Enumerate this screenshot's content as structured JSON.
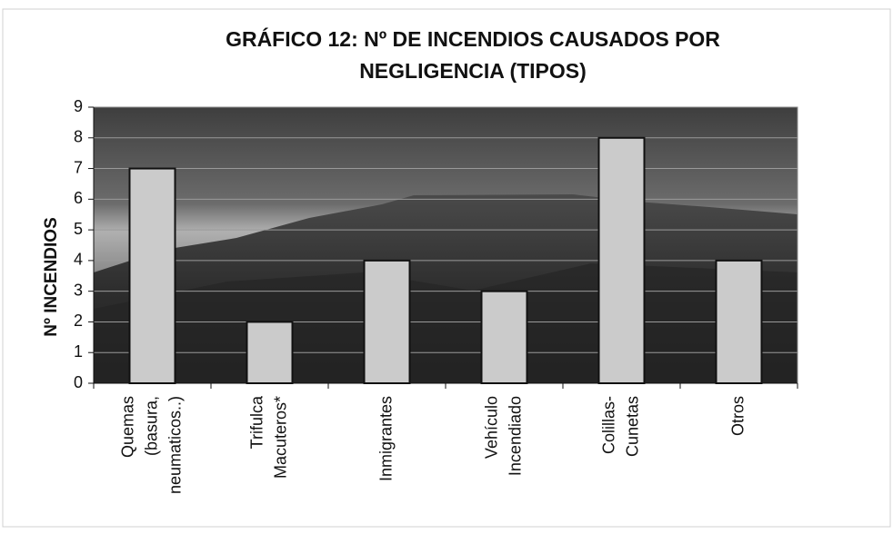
{
  "chart_data": {
    "type": "bar",
    "title": [
      "GRÁFICO 12: Nº DE INCENDIOS CAUSADOS POR",
      "NEGLIGENCIA (TIPOS)"
    ],
    "y_label": "Nº INCENDIOS",
    "categories": [
      [
        "Quemas",
        "(basura,",
        "neumaticos..)"
      ],
      [
        "Trifulca",
        "Macuteros*"
      ],
      [
        "Inmigrantes"
      ],
      [
        "Vehículo",
        "Incendiado"
      ],
      [
        "Colillas-",
        "Cunetas"
      ],
      [
        "Otros"
      ]
    ],
    "values": [
      7,
      2,
      4,
      3,
      8,
      4
    ],
    "color": "#cbcbcb",
    "ylim": [
      0,
      9
    ],
    "yticks": [
      0,
      1,
      2,
      3,
      4,
      5,
      6,
      7,
      8,
      9
    ],
    "grid": true
  }
}
